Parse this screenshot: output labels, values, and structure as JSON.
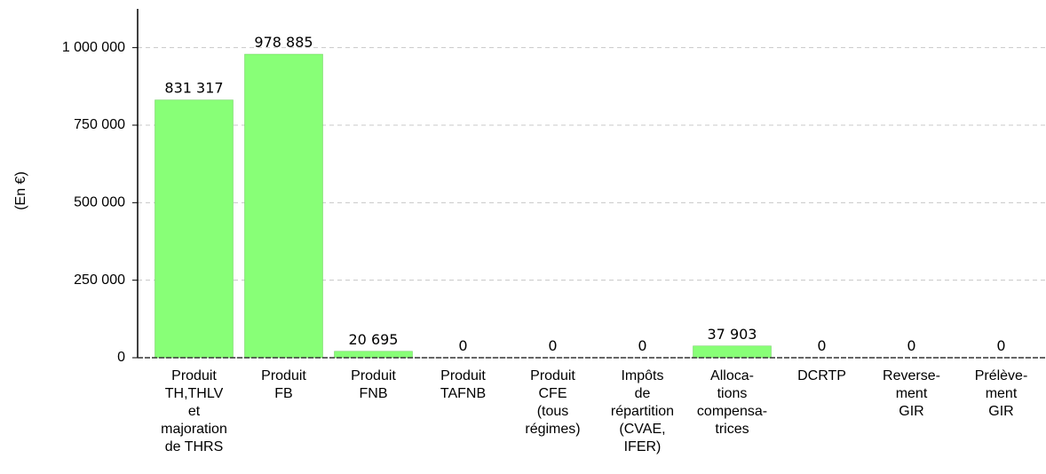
{
  "chart_data": {
    "type": "bar",
    "y_label": "(En €)",
    "categories": [
      "Produit\nTH,THLV\net\nmajoration\nde THRS",
      "Produit\nFB",
      "Produit\nFNB",
      "Produit\nTAFNB",
      "Produit\nCFE\n(tous\nrégimes)",
      "Impôts\nde\nrépartition\n(CVAE,\nIFER)",
      "Alloca-\ntions\ncompensa-\ntrices",
      "DCRTP",
      "Reverse-\nment\nGIR",
      "Prélève-\nment\nGIR"
    ],
    "values": [
      831317,
      978885,
      20695,
      0,
      0,
      0,
      37903,
      0,
      0,
      0
    ],
    "value_labels": [
      "831 317",
      "978 885",
      "20 695",
      "0",
      "0",
      "0",
      "37 903",
      "0",
      "0",
      "0"
    ],
    "color": "#88ff77",
    "ylim": [
      0,
      1125000
    ],
    "yticks": [
      0,
      {
        "value": 250000,
        "label": "250 000"
      },
      {
        "value": 500000,
        "label": "500 000"
      },
      {
        "value": 750000,
        "label": "750 000"
      },
      {
        "value": 1000000,
        "label": "1 000 000"
      }
    ],
    "grid": true
  }
}
